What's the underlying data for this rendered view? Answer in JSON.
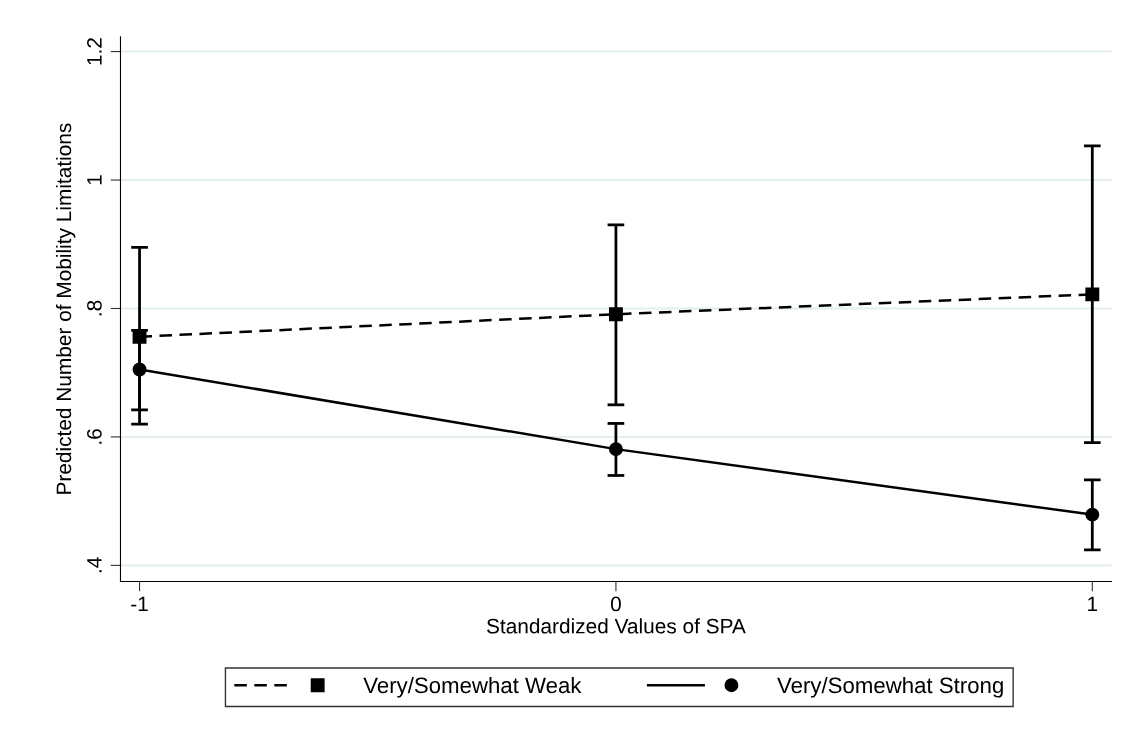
{
  "chart_data": {
    "type": "line",
    "xlabel": "Standardized Values of SPA",
    "ylabel": "Predicted Number of Mobility Limitations",
    "x": [
      -1,
      0,
      1
    ],
    "series": [
      {
        "name": "Very/Somewhat Weak",
        "color": "#000000",
        "values": [
          0.756,
          0.791,
          0.822
        ],
        "errors": [
          [
            0.62,
            0.895
          ],
          [
            0.65,
            0.93
          ],
          [
            0.591,
            1.053
          ]
        ],
        "marker": "square",
        "line_style": "dashed"
      },
      {
        "name": "Very/Somewhat Strong",
        "color": "#000000",
        "values": [
          0.705,
          0.581,
          0.479
        ],
        "errors": [
          [
            0.642,
            0.766
          ],
          [
            0.54,
            0.621
          ],
          [
            0.424,
            0.533
          ]
        ],
        "marker": "circle",
        "line_style": "solid"
      }
    ],
    "xlim": [
      -1.04,
      1.04
    ],
    "xticks": [
      -1,
      0,
      1
    ],
    "ylim": [
      0.375,
      1.223
    ],
    "yticks": [
      {
        "value": 0.4,
        "label": ".4"
      },
      {
        "value": 0.6,
        "label": ".6"
      },
      {
        "value": 0.8,
        "label": ".8"
      },
      {
        "value": 1,
        "label": "1"
      },
      {
        "value": 1.2,
        "label": "1.2"
      }
    ],
    "grid": "y",
    "legend": "bottom"
  }
}
